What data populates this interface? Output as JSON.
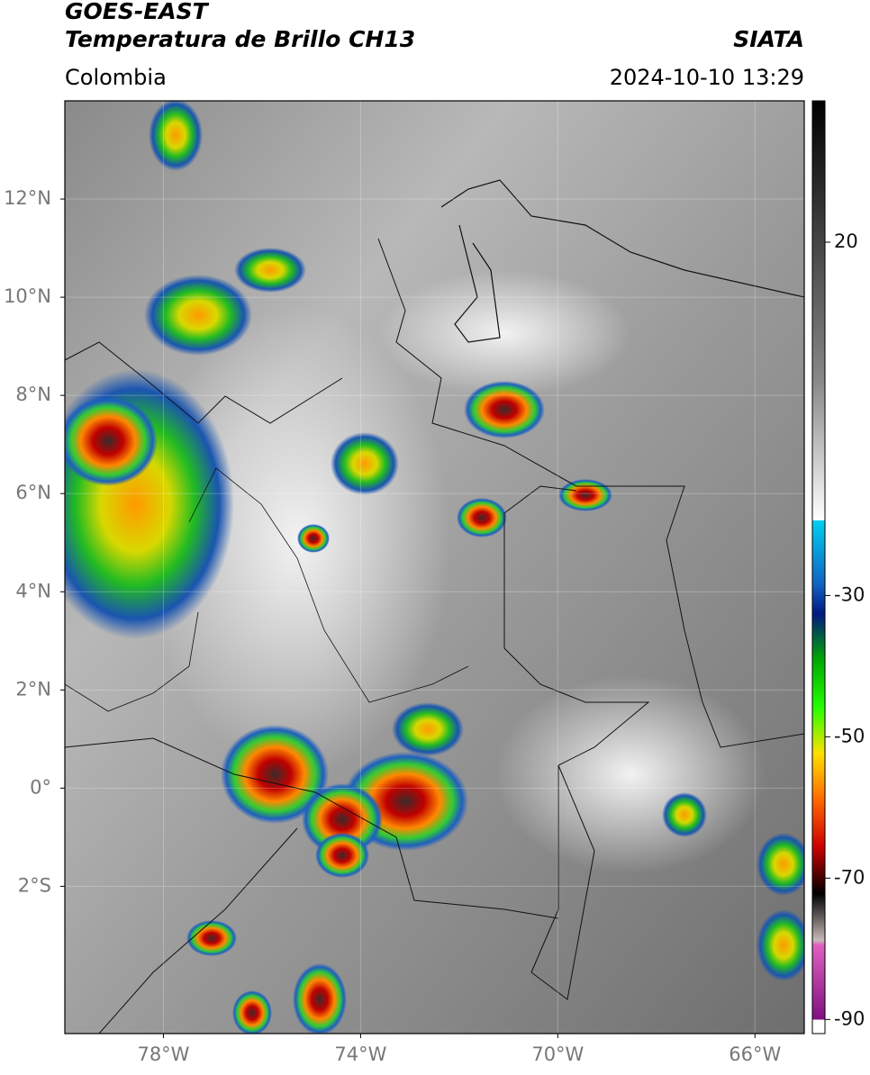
{
  "header": {
    "title": "GOES-EAST",
    "subtitle": "Temperatura de Brillo CH13",
    "source": "SIATA",
    "region": "Colombia",
    "timestamp": "2024-10-10 13:29"
  },
  "map": {
    "xlim": [
      -80,
      -65
    ],
    "ylim": [
      -5,
      14
    ],
    "xticks": [
      {
        "value": -78,
        "label": "78°W"
      },
      {
        "value": -74,
        "label": "74°W"
      },
      {
        "value": -70,
        "label": "70°W"
      },
      {
        "value": -66,
        "label": "66°W"
      }
    ],
    "yticks": [
      {
        "value": 12,
        "label": "12°N"
      },
      {
        "value": 10,
        "label": "10°N"
      },
      {
        "value": 8,
        "label": "8°N"
      },
      {
        "value": 6,
        "label": "6°N"
      },
      {
        "value": 4,
        "label": "4°N"
      },
      {
        "value": 2,
        "label": "2°N"
      },
      {
        "value": 0,
        "label": "0°"
      },
      {
        "value": -2,
        "label": "2°S"
      }
    ],
    "grid": true
  },
  "colorbar": {
    "clim": [
      -92,
      40
    ],
    "ticks": [
      20,
      -30,
      -50,
      -70,
      -90
    ]
  }
}
